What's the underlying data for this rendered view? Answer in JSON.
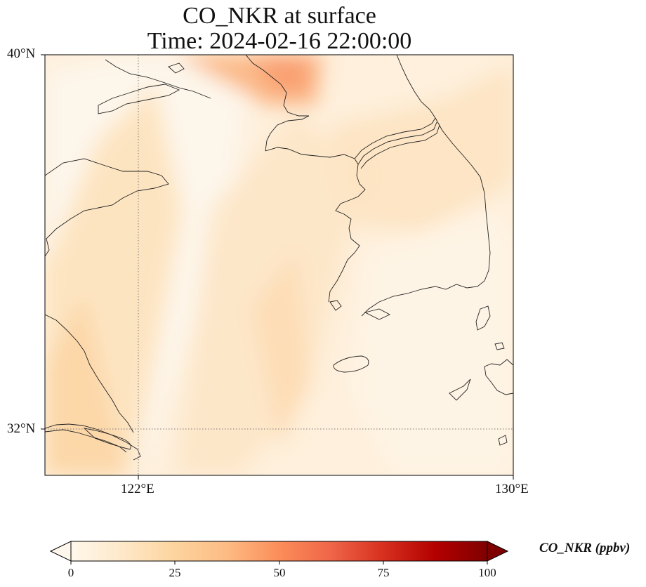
{
  "title": {
    "line1": "CO_NKR at surface",
    "line2": "Time: 2024-02-16 22:00:00"
  },
  "axes": {
    "lat_labels": [
      "40°N",
      "32°N"
    ],
    "lon_labels": [
      "122°E",
      "130°E"
    ],
    "extent": {
      "lon_min": 120,
      "lon_max": 130,
      "lat_min": 31,
      "lat_max": 40
    },
    "gridlines": {
      "lons": [
        122,
        130
      ],
      "lats": [
        32,
        40
      ],
      "style": "dotted"
    }
  },
  "colorbar": {
    "label": "CO_NKR (ppbv)",
    "ticks": [
      "0",
      "25",
      "50",
      "75",
      "100"
    ],
    "range": [
      0,
      100
    ],
    "extend": "both",
    "colormap": "OrRd",
    "stops": [
      "#fff7ec",
      "#fee8c8",
      "#fdd49e",
      "#fdbb84",
      "#fc8d59",
      "#ef6548",
      "#d7301f",
      "#b30000",
      "#7f0000"
    ]
  },
  "colors": {
    "background_field": "#fef2e1",
    "coastline": "#222222"
  }
}
